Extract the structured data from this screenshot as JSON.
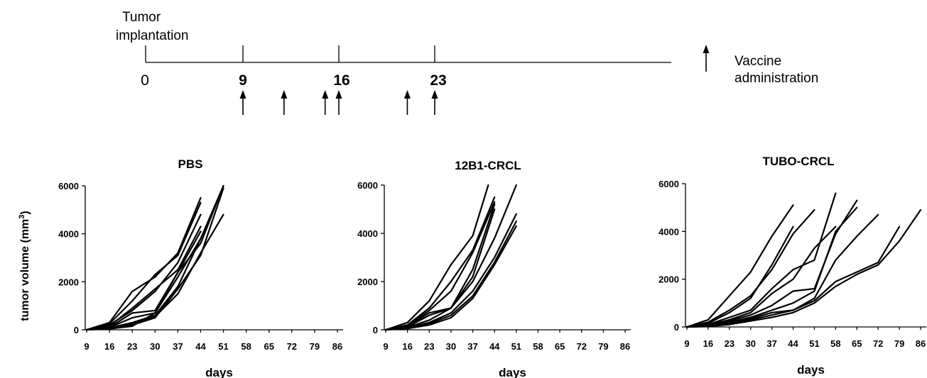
{
  "timeline": {
    "start_label": "Tumor implantation",
    "days": [
      "0",
      "9",
      "16",
      "23"
    ],
    "vaccine_days": [
      9,
      12,
      15,
      16,
      21,
      23
    ],
    "legend_label": "Vaccine administration"
  },
  "chart_data": [
    {
      "type": "line",
      "title": "PBS",
      "xlabel": "days",
      "ylabel": "tumor volume (mm",
      "ylabel_sup": "3",
      "ylabel_close": ")",
      "x_ticks": [
        "9",
        "16",
        "23",
        "30",
        "37",
        "44",
        "51",
        "58",
        "65",
        "72",
        "79",
        "86"
      ],
      "y_ticks": [
        "0",
        "2000",
        "4000",
        "6000"
      ],
      "ylim": [
        0,
        6000
      ],
      "grid": false,
      "series": [
        {
          "x": [
            9,
            16,
            23,
            30,
            37,
            44
          ],
          "y": [
            0,
            300,
            1600,
            2200,
            3200,
            5500
          ]
        },
        {
          "x": [
            9,
            16,
            23,
            30,
            37,
            44
          ],
          "y": [
            0,
            250,
            1200,
            2300,
            3100,
            5300
          ]
        },
        {
          "x": [
            9,
            16,
            23,
            30,
            37,
            44
          ],
          "y": [
            0,
            200,
            800,
            1600,
            2800,
            4800
          ]
        },
        {
          "x": [
            9,
            16,
            23,
            30,
            37,
            44
          ],
          "y": [
            0,
            150,
            900,
            1700,
            2500,
            4300
          ]
        },
        {
          "x": [
            9,
            16,
            23,
            30,
            37,
            44
          ],
          "y": [
            0,
            100,
            700,
            800,
            2400,
            4100
          ]
        },
        {
          "x": [
            9,
            16,
            23,
            30,
            37,
            44
          ],
          "y": [
            0,
            100,
            500,
            700,
            2200,
            3800
          ]
        },
        {
          "x": [
            9,
            16,
            23,
            30,
            37,
            44,
            51
          ],
          "y": [
            0,
            80,
            300,
            600,
            1800,
            3800,
            6000
          ]
        },
        {
          "x": [
            9,
            16,
            23,
            30,
            37,
            44,
            51
          ],
          "y": [
            0,
            60,
            250,
            550,
            1500,
            3200,
            4800
          ]
        },
        {
          "x": [
            9,
            16,
            23,
            30,
            37,
            44,
            51
          ],
          "y": [
            0,
            50,
            200,
            500,
            1700,
            3100,
            5900
          ]
        },
        {
          "x": [
            9,
            16,
            23,
            30,
            37,
            44,
            51
          ],
          "y": [
            0,
            40,
            150,
            700,
            2400,
            3600,
            6000
          ]
        }
      ]
    },
    {
      "type": "line",
      "title": "12B1-CRCL",
      "xlabel": "days",
      "x_ticks": [
        "9",
        "16",
        "23",
        "30",
        "37",
        "44",
        "51",
        "58",
        "65",
        "72",
        "79",
        "86"
      ],
      "y_ticks": [
        "0",
        "2000",
        "4000",
        "6000"
      ],
      "ylim": [
        0,
        6000
      ],
      "grid": false,
      "series": [
        {
          "x": [
            9,
            16,
            23,
            30,
            37,
            42
          ],
          "y": [
            0,
            300,
            1200,
            2700,
            3900,
            6000
          ]
        },
        {
          "x": [
            9,
            16,
            23,
            30,
            37,
            44
          ],
          "y": [
            0,
            200,
            900,
            2000,
            3300,
            5500
          ]
        },
        {
          "x": [
            9,
            16,
            23,
            30,
            37,
            44
          ],
          "y": [
            0,
            150,
            800,
            1600,
            3200,
            5300
          ]
        },
        {
          "x": [
            9,
            16,
            23,
            30,
            37,
            44
          ],
          "y": [
            0,
            150,
            700,
            900,
            2500,
            5200
          ]
        },
        {
          "x": [
            9,
            16,
            23,
            30,
            37,
            44
          ],
          "y": [
            0,
            120,
            600,
            900,
            2200,
            5000
          ]
        },
        {
          "x": [
            9,
            16,
            23,
            30,
            37,
            44,
            51
          ],
          "y": [
            0,
            100,
            400,
            900,
            2000,
            3800,
            6000
          ]
        },
        {
          "x": [
            9,
            16,
            23,
            30,
            37,
            44,
            51
          ],
          "y": [
            0,
            80,
            300,
            700,
            1600,
            3000,
            4800
          ]
        },
        {
          "x": [
            9,
            16,
            23,
            30,
            37,
            44,
            51
          ],
          "y": [
            0,
            60,
            250,
            600,
            1400,
            2800,
            4500
          ]
        },
        {
          "x": [
            9,
            16,
            23,
            30,
            37,
            44,
            51
          ],
          "y": [
            0,
            50,
            200,
            500,
            1300,
            2700,
            4300
          ]
        }
      ]
    },
    {
      "type": "line",
      "title": "TUBO-CRCL",
      "xlabel": "days",
      "x_ticks": [
        "9",
        "16",
        "23",
        "30",
        "37",
        "44",
        "51",
        "58",
        "65",
        "72",
        "79",
        "86"
      ],
      "y_ticks": [
        "0",
        "2000",
        "4000",
        "6000"
      ],
      "ylim": [
        0,
        6000
      ],
      "grid": false,
      "series": [
        {
          "x": [
            9,
            16,
            23,
            30,
            37,
            44
          ],
          "y": [
            0,
            300,
            1300,
            2300,
            3800,
            5100
          ]
        },
        {
          "x": [
            9,
            16,
            23,
            30,
            37,
            44,
            51
          ],
          "y": [
            0,
            200,
            700,
            1300,
            2400,
            3900,
            4900
          ]
        },
        {
          "x": [
            9,
            16,
            23,
            30,
            37,
            44
          ],
          "y": [
            0,
            150,
            600,
            1200,
            2600,
            4200
          ]
        },
        {
          "x": [
            9,
            16,
            23,
            30,
            37,
            44,
            51,
            58
          ],
          "y": [
            0,
            100,
            400,
            700,
            1600,
            2400,
            2800,
            5600
          ]
        },
        {
          "x": [
            9,
            16,
            23,
            30,
            37,
            44,
            51,
            58
          ],
          "y": [
            0,
            80,
            300,
            600,
            1400,
            2000,
            3300,
            4200
          ]
        },
        {
          "x": [
            9,
            16,
            23,
            30,
            37,
            44,
            51,
            58,
            65
          ],
          "y": [
            0,
            60,
            250,
            500,
            900,
            1500,
            1600,
            3900,
            5300
          ]
        },
        {
          "x": [
            9,
            16,
            23,
            30,
            37,
            44,
            51,
            58,
            65
          ],
          "y": [
            0,
            50,
            200,
            400,
            700,
            1000,
            1500,
            4000,
            5000
          ]
        },
        {
          "x": [
            9,
            16,
            23,
            30,
            37,
            44,
            51,
            58,
            65,
            72
          ],
          "y": [
            0,
            40,
            150,
            350,
            600,
            700,
            1200,
            2800,
            3800,
            4700
          ]
        },
        {
          "x": [
            9,
            16,
            23,
            30,
            37,
            44,
            51,
            58,
            65,
            72,
            79
          ],
          "y": [
            0,
            30,
            120,
            300,
            500,
            700,
            1100,
            1900,
            2300,
            2700,
            4200
          ]
        },
        {
          "x": [
            9,
            16,
            23,
            30,
            37,
            44,
            51,
            58,
            65,
            72,
            79,
            86
          ],
          "y": [
            0,
            20,
            100,
            250,
            400,
            600,
            1000,
            1700,
            2200,
            2600,
            3600,
            4900
          ]
        }
      ]
    }
  ]
}
